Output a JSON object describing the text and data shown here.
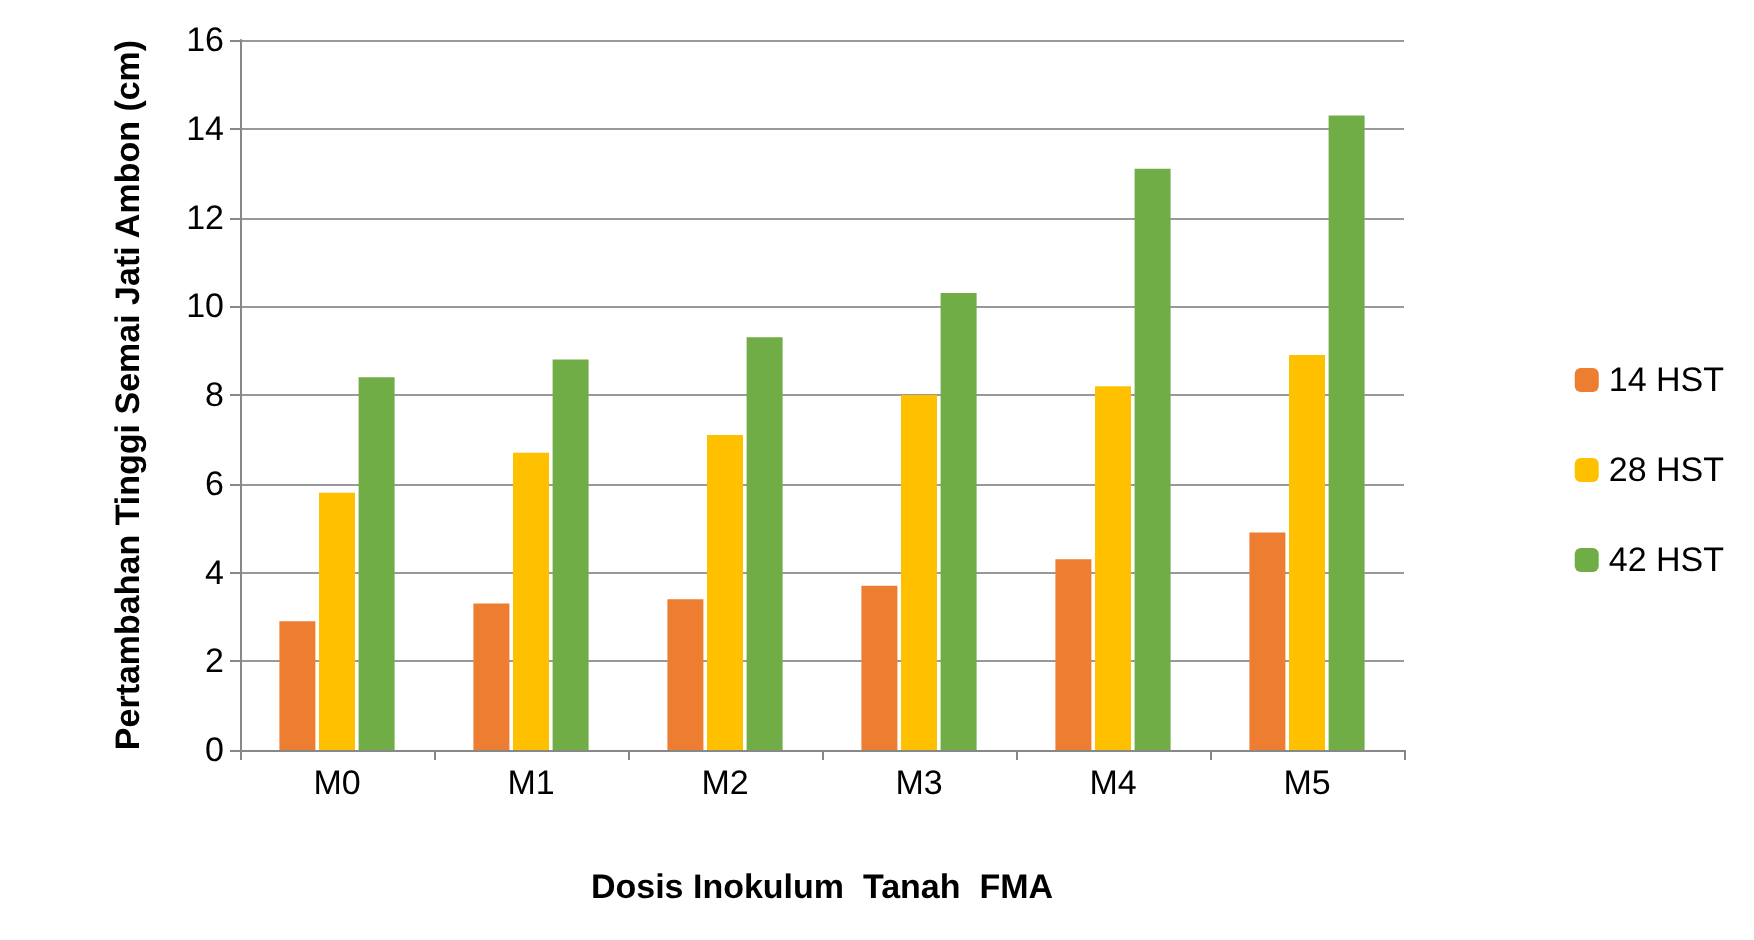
{
  "chart_data": {
    "type": "bar",
    "xlabel": "Dosis Inokulum  Tanah  FMA",
    "ylabel": "Pertambahan Tinggi Semai Jati Ambon (cm)",
    "categories": [
      "M0",
      "M1",
      "M2",
      "M3",
      "M4",
      "M5"
    ],
    "series": [
      {
        "name": "14 HST",
        "color": "#ed7d31",
        "values": [
          2.9,
          3.3,
          3.4,
          3.7,
          4.3,
          4.9
        ]
      },
      {
        "name": "28 HST",
        "color": "#ffc000",
        "values": [
          5.8,
          6.7,
          7.1,
          8.0,
          8.2,
          8.9
        ]
      },
      {
        "name": "42 HST",
        "color": "#70ad47",
        "values": [
          8.4,
          8.8,
          9.3,
          10.3,
          13.1,
          14.3
        ]
      }
    ],
    "ylim": [
      0,
      16
    ],
    "yticks": [
      0,
      2,
      4,
      6,
      8,
      10,
      12,
      14,
      16
    ],
    "grid": "y",
    "legend": "right"
  }
}
